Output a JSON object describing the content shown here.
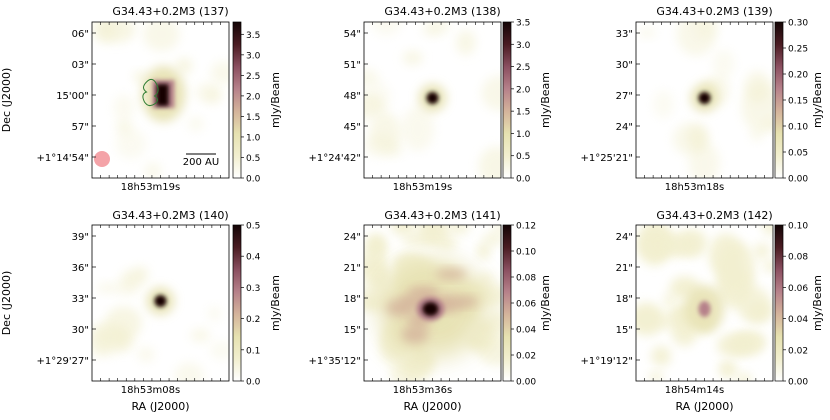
{
  "figure": {
    "ylabel": "Dec (J2000)",
    "xlabel": "RA (J2000)"
  },
  "colors": {
    "cmap": [
      "#ffffff",
      "#f2efcf",
      "#e6e1b0",
      "#d4b39b",
      "#b6818a",
      "#8a4f60",
      "#4a1c22",
      "#140506"
    ],
    "contour": "#2e7d32",
    "beam": "#f4a3a8",
    "frame": "#000000"
  },
  "chart_data": [
    {
      "type": "heatmap",
      "title": "G34.43+0.2M3 (137)",
      "cbar_label": "mJy/Beam",
      "vmin": 0,
      "vmax": 3.8,
      "cbar_ticks": [
        "0.0",
        "0.5",
        "1.0",
        "1.5",
        "2.0",
        "2.5",
        "3.0",
        "3.5"
      ],
      "ytick_labels": [
        "06\"",
        "03\"",
        "15'00\"",
        "57\"",
        "+1°14'54\""
      ],
      "xtick_labels": [
        "18h53m19s"
      ],
      "peak": 3.8,
      "source": "compact",
      "scalebar": "200 AU",
      "show_beam": true,
      "show_contour": true,
      "show_ylabel": true,
      "show_xlabel": false
    },
    {
      "type": "heatmap",
      "title": "G34.43+0.2M3 (138)",
      "cbar_label": "mJy/Beam",
      "vmin": 0,
      "vmax": 3.5,
      "cbar_ticks": [
        "0.0",
        "0.5",
        "1.0",
        "1.5",
        "2.0",
        "2.5",
        "3.0",
        "3.5"
      ],
      "ytick_labels": [
        "54\"",
        "51\"",
        "48\"",
        "45\"",
        "+1°24'42\""
      ],
      "xtick_labels": [
        "18h53m19s"
      ],
      "peak": 3.5,
      "source": "point",
      "show_beam": false,
      "show_contour": false,
      "show_ylabel": false,
      "show_xlabel": false
    },
    {
      "type": "heatmap",
      "title": "G34.43+0.2M3 (139)",
      "cbar_label": "mJy/Beam",
      "vmin": 0,
      "vmax": 0.3,
      "cbar_ticks": [
        "0.00",
        "0.05",
        "0.10",
        "0.15",
        "0.20",
        "0.25",
        "0.30"
      ],
      "ytick_labels": [
        "33\"",
        "30\"",
        "27\"",
        "24\"",
        "+1°25'21\""
      ],
      "xtick_labels": [
        "18h53m18s"
      ],
      "peak": 0.3,
      "source": "point",
      "show_beam": false,
      "show_contour": false,
      "show_ylabel": false,
      "show_xlabel": false
    },
    {
      "type": "heatmap",
      "title": "G34.43+0.2M3 (140)",
      "cbar_label": "mJy/Beam",
      "vmin": 0,
      "vmax": 0.5,
      "cbar_ticks": [
        "0.0",
        "0.1",
        "0.2",
        "0.3",
        "0.4",
        "0.5"
      ],
      "ytick_labels": [
        "39\"",
        "36\"",
        "33\"",
        "30\"",
        "+1°29'27\""
      ],
      "xtick_labels": [
        "18h53m08s"
      ],
      "peak": 0.5,
      "source": "point",
      "show_beam": false,
      "show_contour": false,
      "show_ylabel": true,
      "show_xlabel": true
    },
    {
      "type": "heatmap",
      "title": "G34.43+0.2M3 (141)",
      "cbar_label": "mJy/Beam",
      "vmin": 0,
      "vmax": 0.12,
      "cbar_ticks": [
        "0.00",
        "0.02",
        "0.04",
        "0.06",
        "0.08",
        "0.10",
        "0.12"
      ],
      "ytick_labels": [
        "24\"",
        "21\"",
        "18\"",
        "15\"",
        "+1°35'12\""
      ],
      "xtick_labels": [
        "18h53m36s"
      ],
      "peak": 0.12,
      "source": "extended",
      "show_beam": false,
      "show_contour": false,
      "show_ylabel": false,
      "show_xlabel": true
    },
    {
      "type": "heatmap",
      "title": "G34.43+0.2M3 (142)",
      "cbar_label": "mJy/Beam",
      "vmin": 0,
      "vmax": 0.1,
      "cbar_ticks": [
        "0.00",
        "0.02",
        "0.04",
        "0.06",
        "0.08",
        "0.10"
      ],
      "ytick_labels": [
        "24\"",
        "21\"",
        "18\"",
        "15\"",
        "+1°19'12\""
      ],
      "xtick_labels": [
        "18h54m14s"
      ],
      "peak": 0.06,
      "source": "weak",
      "show_beam": false,
      "show_contour": false,
      "show_ylabel": false,
      "show_xlabel": true
    }
  ]
}
